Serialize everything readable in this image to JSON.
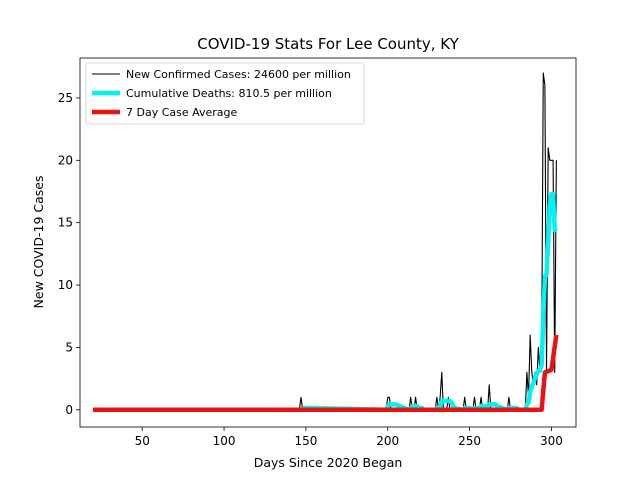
{
  "chart_data": {
    "type": "line",
    "title": "COVID-19 Stats For Lee County, KY",
    "xlabel": "Days Since 2020 Began",
    "ylabel": "New COVID-19 Cases",
    "xlim": [
      12,
      315
    ],
    "ylim": [
      -1.38,
      28.2
    ],
    "xticks": [
      50,
      100,
      150,
      200,
      250,
      300
    ],
    "yticks": [
      0,
      5,
      10,
      15,
      20,
      25
    ],
    "grid": false,
    "legend_position": "top-left",
    "series": [
      {
        "name": "New Confirmed Cases: 24600 per million",
        "color": "#000000",
        "x": [
          20,
          146,
          147,
          148,
          199,
          200,
          201,
          202,
          213,
          214,
          215,
          216,
          217,
          218,
          219,
          229,
          230,
          231,
          232,
          233,
          234,
          235,
          236,
          237,
          238,
          246,
          247,
          248,
          252,
          253,
          254,
          256,
          257,
          258,
          261,
          262,
          263,
          273,
          274,
          275,
          284,
          285,
          286,
          287,
          288,
          289,
          290,
          291,
          292,
          293,
          294,
          295,
          296,
          297,
          298,
          299,
          300,
          301,
          302,
          303
        ],
        "values": [
          0,
          0,
          1,
          0,
          0,
          1,
          1,
          0,
          0,
          1,
          0,
          0,
          1,
          0,
          0,
          0,
          1,
          0,
          1,
          3,
          0,
          0,
          0,
          1,
          0,
          0,
          1,
          0,
          0,
          1,
          0,
          0,
          1,
          0,
          0,
          2,
          0,
          0,
          1,
          0,
          0,
          3,
          1,
          6,
          3,
          2,
          3,
          2,
          5,
          3,
          4,
          27,
          26,
          3,
          21,
          20,
          20,
          20,
          3,
          20
        ]
      },
      {
        "name": "Cumulative Deaths: 810.5 per million",
        "color": "#00f2f2",
        "x": [
          148,
          149,
          150,
          151,
          152,
          153,
          154,
          199,
          200,
          201,
          202,
          203,
          204,
          205,
          213,
          214,
          215,
          216,
          217,
          218,
          219,
          220,
          221,
          222,
          229,
          230,
          231,
          232,
          233,
          234,
          235,
          236,
          237,
          238,
          239,
          240,
          241,
          246,
          247,
          248,
          249,
          250,
          252,
          253,
          254,
          255,
          256,
          257,
          258,
          259,
          260,
          261,
          262,
          263,
          264,
          265,
          266,
          267,
          273,
          274,
          275,
          276,
          277,
          278,
          279,
          280,
          284,
          285,
          286,
          287,
          288,
          289,
          290,
          291,
          292,
          293,
          294,
          295,
          296,
          297,
          298,
          299,
          300,
          301,
          302,
          303
        ],
        "values": [
          0,
          0.14,
          0.14,
          0.14,
          0.14,
          0.14,
          0.14,
          0,
          0.29,
          0.43,
          0.43,
          0.43,
          0.43,
          0.43,
          0,
          0.14,
          0.29,
          0.29,
          0.29,
          0.29,
          0.14,
          0.14,
          0.14,
          0,
          0,
          0.14,
          0.14,
          0.29,
          0.71,
          0.71,
          0.71,
          0.71,
          0.71,
          0.71,
          0.57,
          0.29,
          0.14,
          0,
          0.14,
          0.14,
          0.14,
          0.14,
          0,
          0.14,
          0.14,
          0.14,
          0.14,
          0.29,
          0.29,
          0.29,
          0.29,
          0.29,
          0.43,
          0.43,
          0.43,
          0.43,
          0.43,
          0.29,
          0,
          0.14,
          0.14,
          0.14,
          0.14,
          0.14,
          0.14,
          0,
          0,
          0.43,
          0.57,
          1.43,
          1.86,
          2.14,
          2.57,
          2.86,
          3.14,
          3.14,
          3.57,
          7.29,
          10.71,
          10.86,
          13.43,
          16.29,
          17.29,
          17.29,
          14.43,
          14.29
        ]
      },
      {
        "name": "7 Day Case Average",
        "color": "#e81313",
        "x": [
          20,
          293,
          294,
          296,
          300,
          303
        ],
        "values": [
          0,
          0,
          0,
          3,
          3.2,
          6
        ]
      }
    ]
  }
}
